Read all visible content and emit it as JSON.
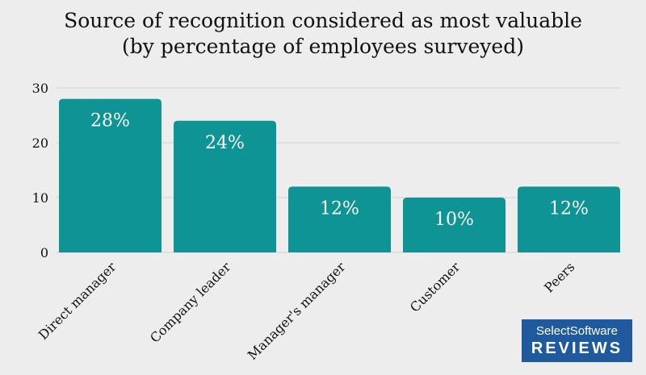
{
  "chart_data": {
    "type": "bar",
    "title": "Source of recognition considered as most valuable",
    "subtitle": "(by percentage of employees surveyed)",
    "categories": [
      "Direct manager",
      "Company leader",
      "Manager's manager",
      "Customer",
      "Peers"
    ],
    "values": [
      28,
      24,
      12,
      10,
      12
    ],
    "data_labels": [
      "28%",
      "24%",
      "12%",
      "10%",
      "12%"
    ],
    "ylim": [
      0,
      30
    ],
    "yticks": [
      "0",
      "10",
      "20",
      "30"
    ],
    "grid": true,
    "bar_color": "#0e9494",
    "label_color": "#ffffff"
  },
  "logo": {
    "line1": "SelectSoftware",
    "line2": "REVIEWS",
    "color": "#1f5a9e"
  }
}
